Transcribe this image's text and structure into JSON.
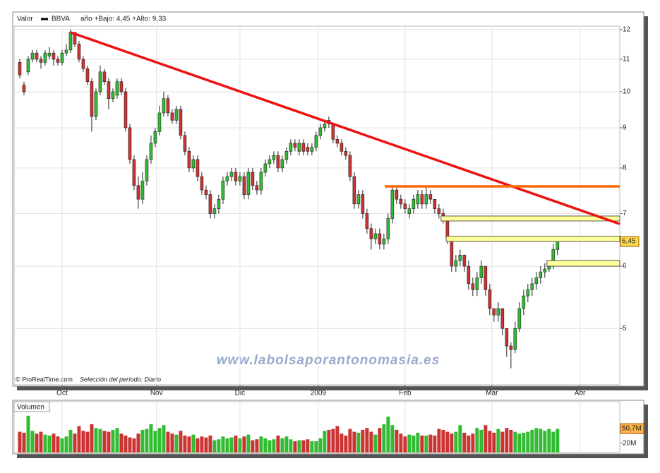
{
  "chart_data": {
    "type": "candlestick",
    "header": {
      "field": "Valor",
      "symbol": "BBVA",
      "stats": "año +Bajo: 4,45 +Alto: 9,33"
    },
    "copyright": "© ProRealTime.com",
    "period": "Selección del período: Diario",
    "watermark": "www.labolsaporantonomasia.es",
    "log_scale": true,
    "grid": true,
    "up_color": "#33bb33",
    "down_color": "#cc3333",
    "xlim": [
      -1.33,
      141.7
    ],
    "xticks": [
      {
        "value": 10,
        "label": "Oct"
      },
      {
        "value": 32.3,
        "label": "Nov"
      },
      {
        "value": 52,
        "label": "Dic"
      },
      {
        "value": 70.5,
        "label": "2009"
      },
      {
        "value": 91,
        "label": "Feb"
      },
      {
        "value": 111.5,
        "label": "Mar"
      },
      {
        "value": 132.3,
        "label": "Abr"
      }
    ],
    "ylim": [
      4.24,
      12.12
    ],
    "yticks": [
      5,
      6,
      7,
      8,
      9,
      10,
      11,
      12
    ],
    "last_price": {
      "value": 6.45,
      "label": "6,45"
    },
    "candles": [
      [
        10.9,
        11.0,
        10.4,
        10.5
      ],
      [
        10.2,
        10.3,
        9.9,
        10.0
      ],
      [
        10.6,
        11.1,
        10.5,
        11.0
      ],
      [
        11.0,
        11.3,
        10.9,
        11.2
      ],
      [
        11.2,
        11.3,
        10.9,
        11.0
      ],
      [
        11.0,
        11.1,
        10.7,
        10.9
      ],
      [
        10.9,
        11.3,
        10.8,
        11.2
      ],
      [
        11.1,
        11.4,
        11.0,
        11.2
      ],
      [
        11.2,
        11.3,
        10.8,
        11.0
      ],
      [
        11.0,
        11.1,
        10.8,
        10.9
      ],
      [
        10.9,
        11.3,
        10.8,
        11.2
      ],
      [
        11.2,
        11.5,
        11.1,
        11.3
      ],
      [
        11.3,
        12.0,
        11.2,
        11.9
      ],
      [
        11.9,
        11.9,
        11.4,
        11.5
      ],
      [
        11.5,
        11.6,
        10.9,
        11.0
      ],
      [
        11.0,
        11.1,
        10.6,
        10.7
      ],
      [
        10.7,
        10.8,
        10.2,
        10.3
      ],
      [
        10.3,
        10.4,
        8.9,
        9.3
      ],
      [
        9.3,
        10.1,
        9.2,
        10.0
      ],
      [
        10.0,
        10.8,
        9.9,
        10.6
      ],
      [
        10.6,
        10.7,
        10.2,
        10.3
      ],
      [
        10.3,
        10.4,
        9.5,
        9.8
      ],
      [
        9.8,
        10.1,
        9.7,
        10.0
      ],
      [
        9.9,
        10.4,
        9.8,
        10.3
      ],
      [
        10.3,
        10.4,
        9.9,
        10.0
      ],
      [
        10.0,
        10.1,
        8.9,
        9.0
      ],
      [
        9.0,
        9.1,
        8.1,
        8.2
      ],
      [
        8.2,
        8.3,
        7.5,
        7.6
      ],
      [
        7.6,
        7.8,
        7.1,
        7.3
      ],
      [
        7.3,
        7.9,
        7.2,
        7.7
      ],
      [
        7.7,
        8.3,
        7.6,
        8.2
      ],
      [
        8.2,
        8.8,
        8.1,
        8.6
      ],
      [
        8.6,
        9.0,
        8.5,
        8.9
      ],
      [
        8.9,
        9.6,
        8.8,
        9.4
      ],
      [
        9.4,
        10.0,
        9.3,
        9.8
      ],
      [
        9.8,
        9.9,
        9.3,
        9.4
      ],
      [
        9.4,
        9.5,
        9.1,
        9.2
      ],
      [
        9.2,
        9.6,
        9.1,
        9.5
      ],
      [
        9.5,
        9.6,
        8.7,
        8.8
      ],
      [
        8.8,
        8.9,
        8.3,
        8.4
      ],
      [
        8.4,
        8.5,
        7.9,
        8.0
      ],
      [
        8.0,
        8.3,
        7.9,
        8.2
      ],
      [
        8.2,
        8.3,
        7.7,
        7.8
      ],
      [
        7.8,
        7.9,
        7.4,
        7.5
      ],
      [
        7.5,
        7.6,
        7.3,
        7.4
      ],
      [
        7.4,
        7.5,
        6.9,
        7.0
      ],
      [
        7.0,
        7.2,
        6.9,
        7.1
      ],
      [
        7.1,
        7.4,
        7.0,
        7.3
      ],
      [
        7.3,
        7.8,
        7.2,
        7.7
      ],
      [
        7.7,
        7.9,
        7.6,
        7.8
      ],
      [
        7.8,
        8.0,
        7.7,
        7.9
      ],
      [
        7.9,
        8.0,
        7.6,
        7.7
      ],
      [
        7.7,
        7.9,
        7.6,
        7.8
      ],
      [
        7.8,
        7.9,
        7.3,
        7.4
      ],
      [
        7.4,
        8.0,
        7.3,
        7.9
      ],
      [
        7.9,
        8.0,
        7.5,
        7.6
      ],
      [
        7.6,
        7.7,
        7.4,
        7.5
      ],
      [
        7.5,
        8.0,
        7.4,
        7.9
      ],
      [
        7.9,
        8.2,
        7.8,
        8.1
      ],
      [
        8.1,
        8.3,
        8.0,
        8.2
      ],
      [
        8.2,
        8.4,
        8.1,
        8.3
      ],
      [
        8.3,
        8.4,
        7.9,
        8.0
      ],
      [
        8.0,
        8.3,
        7.9,
        8.2
      ],
      [
        8.2,
        8.5,
        8.1,
        8.4
      ],
      [
        8.4,
        8.7,
        8.3,
        8.6
      ],
      [
        8.6,
        8.7,
        8.4,
        8.5
      ],
      [
        8.4,
        8.7,
        8.3,
        8.6
      ],
      [
        8.6,
        8.7,
        8.3,
        8.4
      ],
      [
        8.5,
        8.6,
        8.3,
        8.4
      ],
      [
        8.4,
        8.6,
        8.3,
        8.5
      ],
      [
        8.5,
        8.9,
        8.4,
        8.8
      ],
      [
        8.8,
        9.1,
        8.7,
        9.0
      ],
      [
        9.0,
        9.2,
        8.9,
        9.1
      ],
      [
        9.2,
        9.3,
        9.0,
        9.1
      ],
      [
        9.1,
        9.1,
        8.6,
        8.7
      ],
      [
        8.7,
        8.8,
        8.5,
        8.6
      ],
      [
        8.6,
        8.7,
        8.3,
        8.4
      ],
      [
        8.4,
        8.5,
        8.2,
        8.3
      ],
      [
        8.3,
        8.4,
        7.7,
        7.8
      ],
      [
        7.8,
        7.9,
        7.1,
        7.2
      ],
      [
        7.2,
        7.5,
        7.1,
        7.4
      ],
      [
        7.4,
        7.5,
        6.9,
        7.0
      ],
      [
        7.0,
        7.1,
        6.6,
        6.7
      ],
      [
        6.7,
        6.8,
        6.3,
        6.5
      ],
      [
        6.5,
        6.7,
        6.4,
        6.6
      ],
      [
        6.6,
        6.7,
        6.3,
        6.4
      ],
      [
        6.4,
        6.6,
        6.3,
        6.5
      ],
      [
        6.5,
        7.0,
        6.4,
        6.9
      ],
      [
        6.9,
        7.6,
        6.8,
        7.5
      ],
      [
        7.5,
        7.6,
        7.2,
        7.3
      ],
      [
        7.3,
        7.4,
        7.1,
        7.2
      ],
      [
        7.2,
        7.3,
        7.0,
        7.1
      ],
      [
        7.0,
        7.2,
        6.9,
        7.1
      ],
      [
        7.1,
        7.4,
        7.0,
        7.3
      ],
      [
        7.2,
        7.5,
        7.1,
        7.4
      ],
      [
        7.4,
        7.5,
        7.1,
        7.2
      ],
      [
        7.2,
        7.6,
        7.1,
        7.4
      ],
      [
        7.4,
        7.5,
        7.2,
        7.3
      ],
      [
        7.3,
        7.3,
        7.0,
        7.1
      ],
      [
        7.1,
        7.2,
        6.9,
        7.0
      ],
      [
        7.0,
        7.1,
        6.8,
        6.9
      ],
      [
        6.9,
        6.9,
        6.4,
        6.5
      ],
      [
        6.5,
        6.5,
        5.9,
        6.0
      ],
      [
        6.0,
        6.2,
        5.9,
        6.1
      ],
      [
        6.1,
        6.3,
        6.0,
        6.2
      ],
      [
        6.2,
        6.2,
        5.9,
        6.0
      ],
      [
        6.0,
        6.1,
        5.6,
        5.7
      ],
      [
        5.7,
        5.8,
        5.5,
        5.6
      ],
      [
        5.6,
        5.9,
        5.5,
        5.8
      ],
      [
        5.8,
        6.1,
        5.7,
        6.0
      ],
      [
        6.0,
        6.0,
        5.5,
        5.6
      ],
      [
        5.6,
        5.7,
        5.2,
        5.3
      ],
      [
        5.3,
        5.3,
        5.1,
        5.2
      ],
      [
        5.2,
        5.4,
        5.1,
        5.3
      ],
      [
        5.3,
        5.3,
        4.9,
        5.0
      ],
      [
        5.0,
        5.0,
        4.6,
        4.75
      ],
      [
        4.75,
        4.8,
        4.45,
        4.7
      ],
      [
        4.7,
        5.1,
        4.65,
        5.0
      ],
      [
        5.0,
        5.4,
        4.95,
        5.3
      ],
      [
        5.3,
        5.6,
        5.2,
        5.5
      ],
      [
        5.5,
        5.7,
        5.4,
        5.6
      ],
      [
        5.6,
        5.8,
        5.5,
        5.7
      ],
      [
        5.7,
        5.9,
        5.6,
        5.8
      ],
      [
        5.8,
        6.0,
        5.7,
        5.9
      ],
      [
        5.9,
        6.05,
        5.8,
        5.95
      ],
      [
        5.95,
        6.1,
        5.9,
        6.0
      ],
      [
        6.0,
        6.4,
        5.95,
        6.3
      ],
      [
        6.3,
        6.55,
        6.2,
        6.45
      ]
    ],
    "trendlines": [
      {
        "color": "#ee1111",
        "points": [
          [
            12,
            11.9
          ],
          [
            141.7,
            6.79
          ]
        ]
      },
      {
        "color": "#ff6600",
        "points": [
          [
            86.2,
            7.58
          ],
          [
            141.7,
            7.58
          ]
        ]
      }
    ],
    "zones": [
      {
        "x0": 99.5,
        "low": 6.85,
        "high": 6.95
      },
      {
        "x0": 100.7,
        "low": 6.45,
        "high": 6.55
      },
      {
        "x0": 124.5,
        "low": 6.0,
        "high": 6.1
      }
    ],
    "volume": {
      "title": "Volumen",
      "ylim": [
        0,
        107.7
      ],
      "yticks": [
        {
          "value": 20,
          "label": "20M"
        }
      ],
      "last": {
        "value": 50.7,
        "label": "50,7M"
      },
      "values": [
        44,
        42,
        78,
        46,
        40,
        44,
        38,
        36,
        40,
        34,
        30,
        34,
        48,
        40,
        56,
        46,
        44,
        60,
        52,
        50,
        46,
        44,
        48,
        52,
        40,
        36,
        32,
        30,
        40,
        48,
        50,
        60,
        46,
        52,
        58,
        44,
        40,
        38,
        46,
        36,
        34,
        38,
        30,
        34,
        32,
        36,
        26,
        28,
        34,
        30,
        32,
        36,
        30,
        34,
        38,
        26,
        28,
        34,
        30,
        26,
        28,
        36,
        30,
        34,
        28,
        24,
        26,
        26,
        28,
        24,
        24,
        30,
        46,
        48,
        50,
        56,
        40,
        36,
        50,
        44,
        42,
        48,
        52,
        44,
        38,
        52,
        60,
        76,
        58,
        48,
        40,
        34,
        38,
        36,
        42,
        36,
        36,
        38,
        36,
        50,
        48,
        44,
        40,
        44,
        58,
        42,
        36,
        40,
        52,
        48,
        58,
        46,
        42,
        50,
        44,
        52,
        48,
        44,
        40,
        42,
        44,
        48,
        52,
        50,
        46,
        50,
        44,
        50
      ]
    }
  }
}
